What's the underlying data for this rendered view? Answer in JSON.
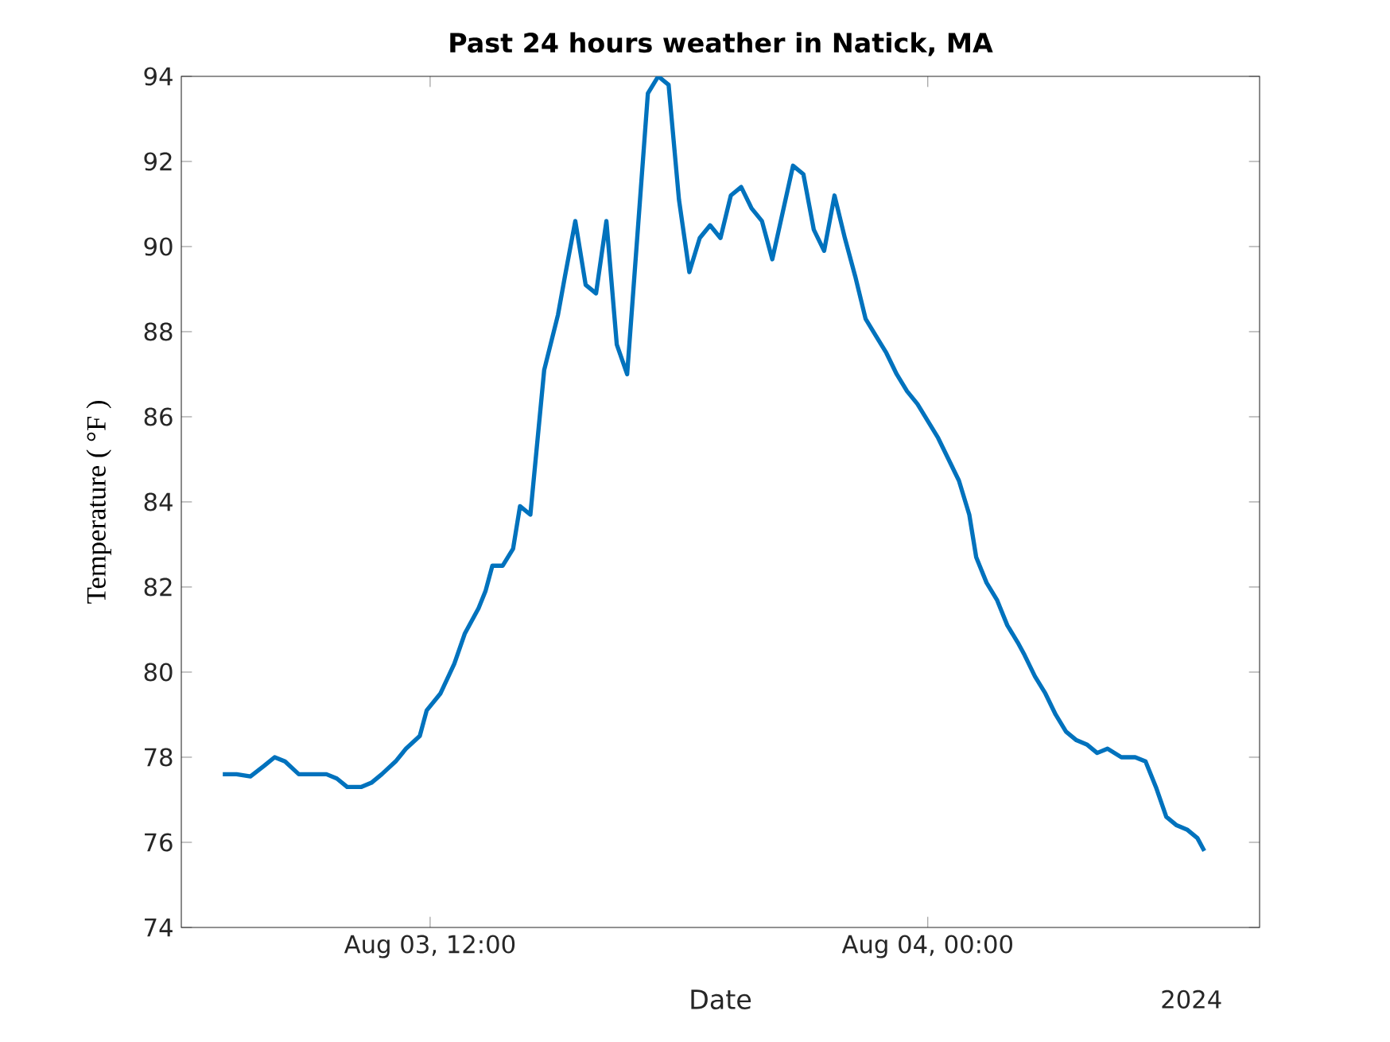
{
  "chart_data": {
    "type": "line",
    "title": "Past 24 hours weather in Natick, MA",
    "xlabel": "Date",
    "ylabel": "Temperature ( °F )",
    "x": [
      "2024-08-03T07:00",
      "2024-08-03T07:20",
      "2024-08-03T07:40",
      "2024-08-03T08:00",
      "2024-08-03T08:15",
      "2024-08-03T08:30",
      "2024-08-03T08:50",
      "2024-08-03T09:10",
      "2024-08-03T09:30",
      "2024-08-03T09:45",
      "2024-08-03T10:00",
      "2024-08-03T10:20",
      "2024-08-03T10:35",
      "2024-08-03T10:50",
      "2024-08-03T11:10",
      "2024-08-03T11:25",
      "2024-08-03T11:45",
      "2024-08-03T11:55",
      "2024-08-03T12:15",
      "2024-08-03T12:35",
      "2024-08-03T12:50",
      "2024-08-03T13:10",
      "2024-08-03T13:20",
      "2024-08-03T13:30",
      "2024-08-03T13:45",
      "2024-08-03T14:00",
      "2024-08-03T14:10",
      "2024-08-03T14:25",
      "2024-08-03T14:45",
      "2024-08-03T15:05",
      "2024-08-03T15:15",
      "2024-08-03T15:30",
      "2024-08-03T15:45",
      "2024-08-03T16:00",
      "2024-08-03T16:15",
      "2024-08-03T16:30",
      "2024-08-03T16:45",
      "2024-08-03T17:15",
      "2024-08-03T17:30",
      "2024-08-03T17:45",
      "2024-08-03T18:00",
      "2024-08-03T18:15",
      "2024-08-03T18:30",
      "2024-08-03T18:45",
      "2024-08-03T19:00",
      "2024-08-03T19:15",
      "2024-08-03T19:30",
      "2024-08-03T19:45",
      "2024-08-03T20:00",
      "2024-08-03T20:15",
      "2024-08-03T20:45",
      "2024-08-03T21:00",
      "2024-08-03T21:15",
      "2024-08-03T21:30",
      "2024-08-03T21:45",
      "2024-08-03T22:00",
      "2024-08-03T22:15",
      "2024-08-03T22:30",
      "2024-08-03T22:45",
      "2024-08-03T23:00",
      "2024-08-03T23:15",
      "2024-08-03T23:30",
      "2024-08-03T23:45",
      "2024-08-04T00:00",
      "2024-08-04T00:15",
      "2024-08-04T00:30",
      "2024-08-04T00:45",
      "2024-08-04T01:00",
      "2024-08-04T01:10",
      "2024-08-04T01:25",
      "2024-08-04T01:40",
      "2024-08-04T01:55",
      "2024-08-04T02:10",
      "2024-08-04T02:20",
      "2024-08-04T02:35",
      "2024-08-04T02:50",
      "2024-08-04T03:05",
      "2024-08-04T03:20",
      "2024-08-04T03:35",
      "2024-08-04T03:50",
      "2024-08-04T04:05",
      "2024-08-04T04:20",
      "2024-08-04T04:40",
      "2024-08-04T05:00",
      "2024-08-04T05:15",
      "2024-08-04T05:30",
      "2024-08-04T05:45",
      "2024-08-04T06:00",
      "2024-08-04T06:15",
      "2024-08-04T06:30",
      "2024-08-04T06:40"
    ],
    "series": [
      {
        "color": "#0072bd",
        "values": [
          77.6,
          77.6,
          77.55,
          77.8,
          78.0,
          77.9,
          77.6,
          77.6,
          77.6,
          77.5,
          77.3,
          77.3,
          77.4,
          77.6,
          77.9,
          78.2,
          78.5,
          79.1,
          79.5,
          80.2,
          80.9,
          81.5,
          81.9,
          82.5,
          82.5,
          82.9,
          83.9,
          83.7,
          87.1,
          88.4,
          89.3,
          90.6,
          89.1,
          88.9,
          90.6,
          87.7,
          87.0,
          93.6,
          94.0,
          93.8,
          91.1,
          89.4,
          90.2,
          90.5,
          90.2,
          91.2,
          91.4,
          90.9,
          90.6,
          89.7,
          91.9,
          91.7,
          90.4,
          89.9,
          91.2,
          90.2,
          89.3,
          88.3,
          87.9,
          87.5,
          87.0,
          86.6,
          86.3,
          85.9,
          85.5,
          85.0,
          84.5,
          83.7,
          82.7,
          82.1,
          81.7,
          81.1,
          80.7,
          80.4,
          79.9,
          79.5,
          79.0,
          78.6,
          78.4,
          78.3,
          78.1,
          78.2,
          78.0,
          78.0,
          77.9,
          77.3,
          76.6,
          76.4,
          76.3,
          76.1,
          75.8
        ]
      }
    ],
    "xlim": [
      "2024-08-03T06:00",
      "2024-08-04T08:00"
    ],
    "xticks": [
      {
        "value": "2024-08-03T12:00",
        "label": "Aug 03, 12:00"
      },
      {
        "value": "2024-08-04T00:00",
        "label": "Aug 04, 00:00"
      }
    ],
    "ylim": [
      74,
      94
    ],
    "yticks": [
      74,
      76,
      78,
      80,
      82,
      84,
      86,
      88,
      90,
      92,
      94
    ],
    "annotations": [
      "2024"
    ],
    "grid": false,
    "marker": "none",
    "line_style": "solid"
  }
}
